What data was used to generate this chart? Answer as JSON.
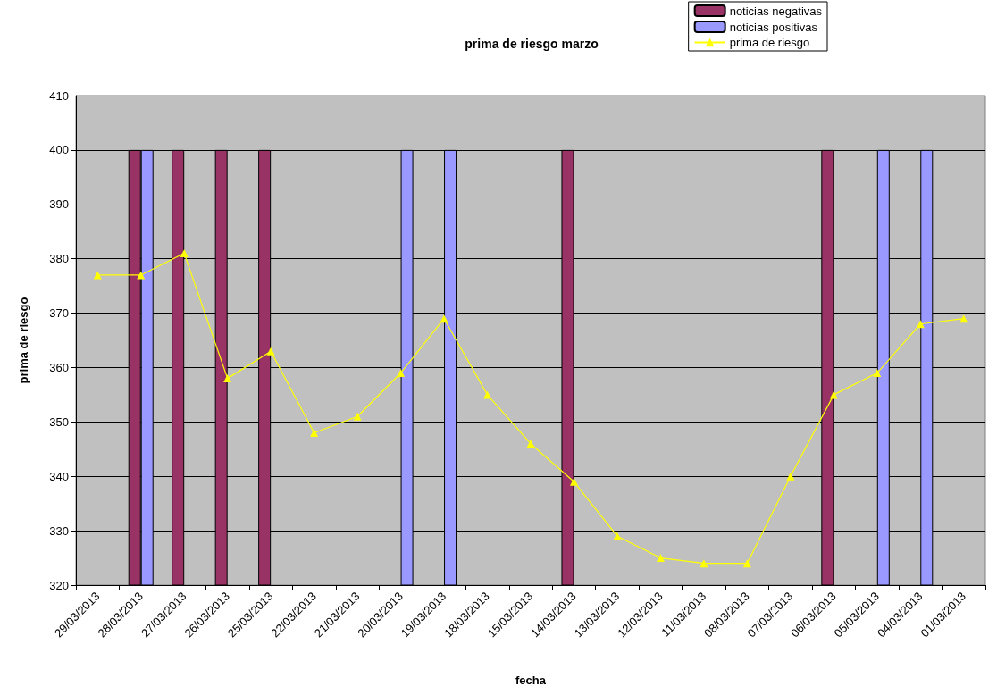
{
  "chart_data": {
    "type": "bar",
    "title": "prima de riesgo marzo",
    "xlabel": "fecha",
    "ylabel": "prima de riesgo",
    "categories": [
      "29/03/2013",
      "28/03/2013",
      "27/03/2013",
      "26/03/2013",
      "25/03/2013",
      "22/03/2013",
      "21/03/2013",
      "20/03/2013",
      "19/03/2013",
      "18/03/2013",
      "15/03/2013",
      "14/03/2013",
      "13/03/2013",
      "12/03/2013",
      "11/03/2013",
      "08/03/2013",
      "07/03/2013",
      "06/03/2013",
      "05/03/2013",
      "04/03/2013",
      "01/03/2013"
    ],
    "series": [
      {
        "name": "noticias negativas",
        "color": "#993366",
        "values": [
          null,
          400,
          400,
          400,
          400,
          null,
          null,
          null,
          null,
          null,
          null,
          400,
          null,
          null,
          null,
          null,
          null,
          400,
          null,
          null,
          null
        ]
      },
      {
        "name": "noticias positivas",
        "color": "#9999ff",
        "values": [
          null,
          400,
          null,
          null,
          null,
          null,
          null,
          400,
          400,
          null,
          null,
          null,
          null,
          null,
          null,
          null,
          null,
          null,
          400,
          400,
          null
        ]
      },
      {
        "name": "prima de riesgo",
        "type": "line",
        "color": "#ffff00",
        "marker": "triangle",
        "line_style": "solid",
        "values": [
          377,
          377,
          381,
          358,
          363,
          348,
          351,
          359,
          369,
          355,
          346,
          339,
          329,
          325,
          324,
          324,
          340,
          355,
          359,
          368,
          369
        ]
      }
    ],
    "ylim": [
      320,
      410
    ],
    "yticks": [
      320,
      330,
      340,
      350,
      360,
      370,
      380,
      390,
      400,
      410
    ],
    "grid": "y",
    "legend": "top right"
  }
}
